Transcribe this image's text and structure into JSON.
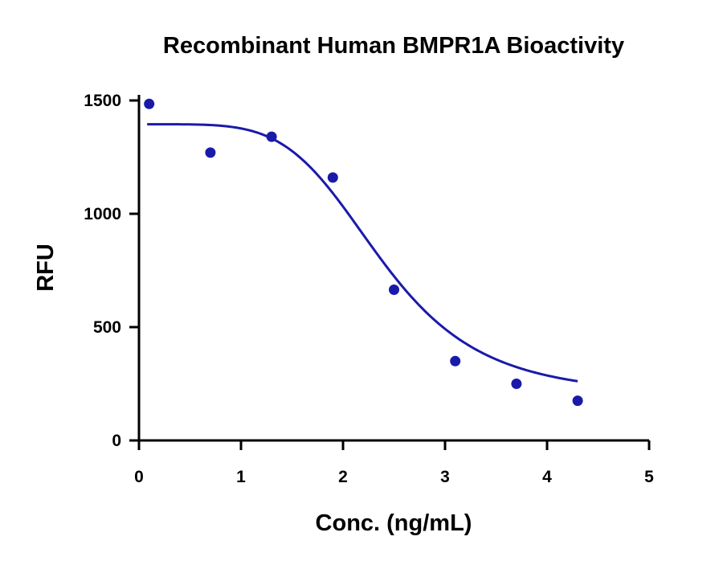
{
  "chart_data": {
    "type": "scatter",
    "title": "Recombinant Human BMPR1A Bioactivity",
    "xlabel": "Conc. (ng/mL)",
    "ylabel": "RFU",
    "xlim": [
      0,
      5
    ],
    "ylim": [
      0,
      1500
    ],
    "xticks": [
      0,
      1,
      2,
      3,
      4,
      5
    ],
    "yticks": [
      0,
      500,
      1000,
      1500
    ],
    "grid": false,
    "series": [
      {
        "x": [
          0.1,
          0.7,
          1.3,
          1.9,
          2.5,
          3.1,
          3.7,
          4.3
        ],
        "y": [
          1485,
          1270,
          1340,
          1160,
          665,
          350,
          250,
          175
        ],
        "fit": {
          "model": "4PL",
          "top": 1395,
          "bottom": 195,
          "ec50": 2.38,
          "hill": 2.0,
          "x_range": [
            0.08,
            4.3
          ]
        }
      }
    ],
    "colors": {
      "series": "#1a1aaa",
      "axes": "#000000"
    }
  }
}
